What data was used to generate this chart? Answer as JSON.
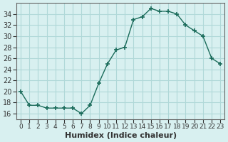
{
  "x": [
    0,
    1,
    2,
    3,
    4,
    5,
    6,
    7,
    8,
    9,
    10,
    11,
    12,
    13,
    14,
    15,
    16,
    17,
    18,
    19,
    20,
    21,
    22,
    23
  ],
  "y": [
    20,
    17.5,
    17.5,
    17,
    17,
    17,
    17,
    16,
    17.5,
    21.5,
    25,
    27.5,
    28,
    33,
    33.5,
    35,
    34.5,
    34.5,
    34,
    32,
    31,
    30,
    26,
    25
  ],
  "line_color": "#1a6b5a",
  "marker": "+",
  "bg_color": "#d8f0f0",
  "grid_color": "#b0d8d8",
  "xlabel": "Humidex (Indice chaleur)",
  "xlabel_fontsize": 8,
  "tick_fontsize": 7,
  "ylim": [
    15,
    36
  ],
  "yticks": [
    16,
    18,
    20,
    22,
    24,
    26,
    28,
    30,
    32,
    34
  ],
  "xlim": [
    -0.5,
    23.5
  ],
  "title": ""
}
